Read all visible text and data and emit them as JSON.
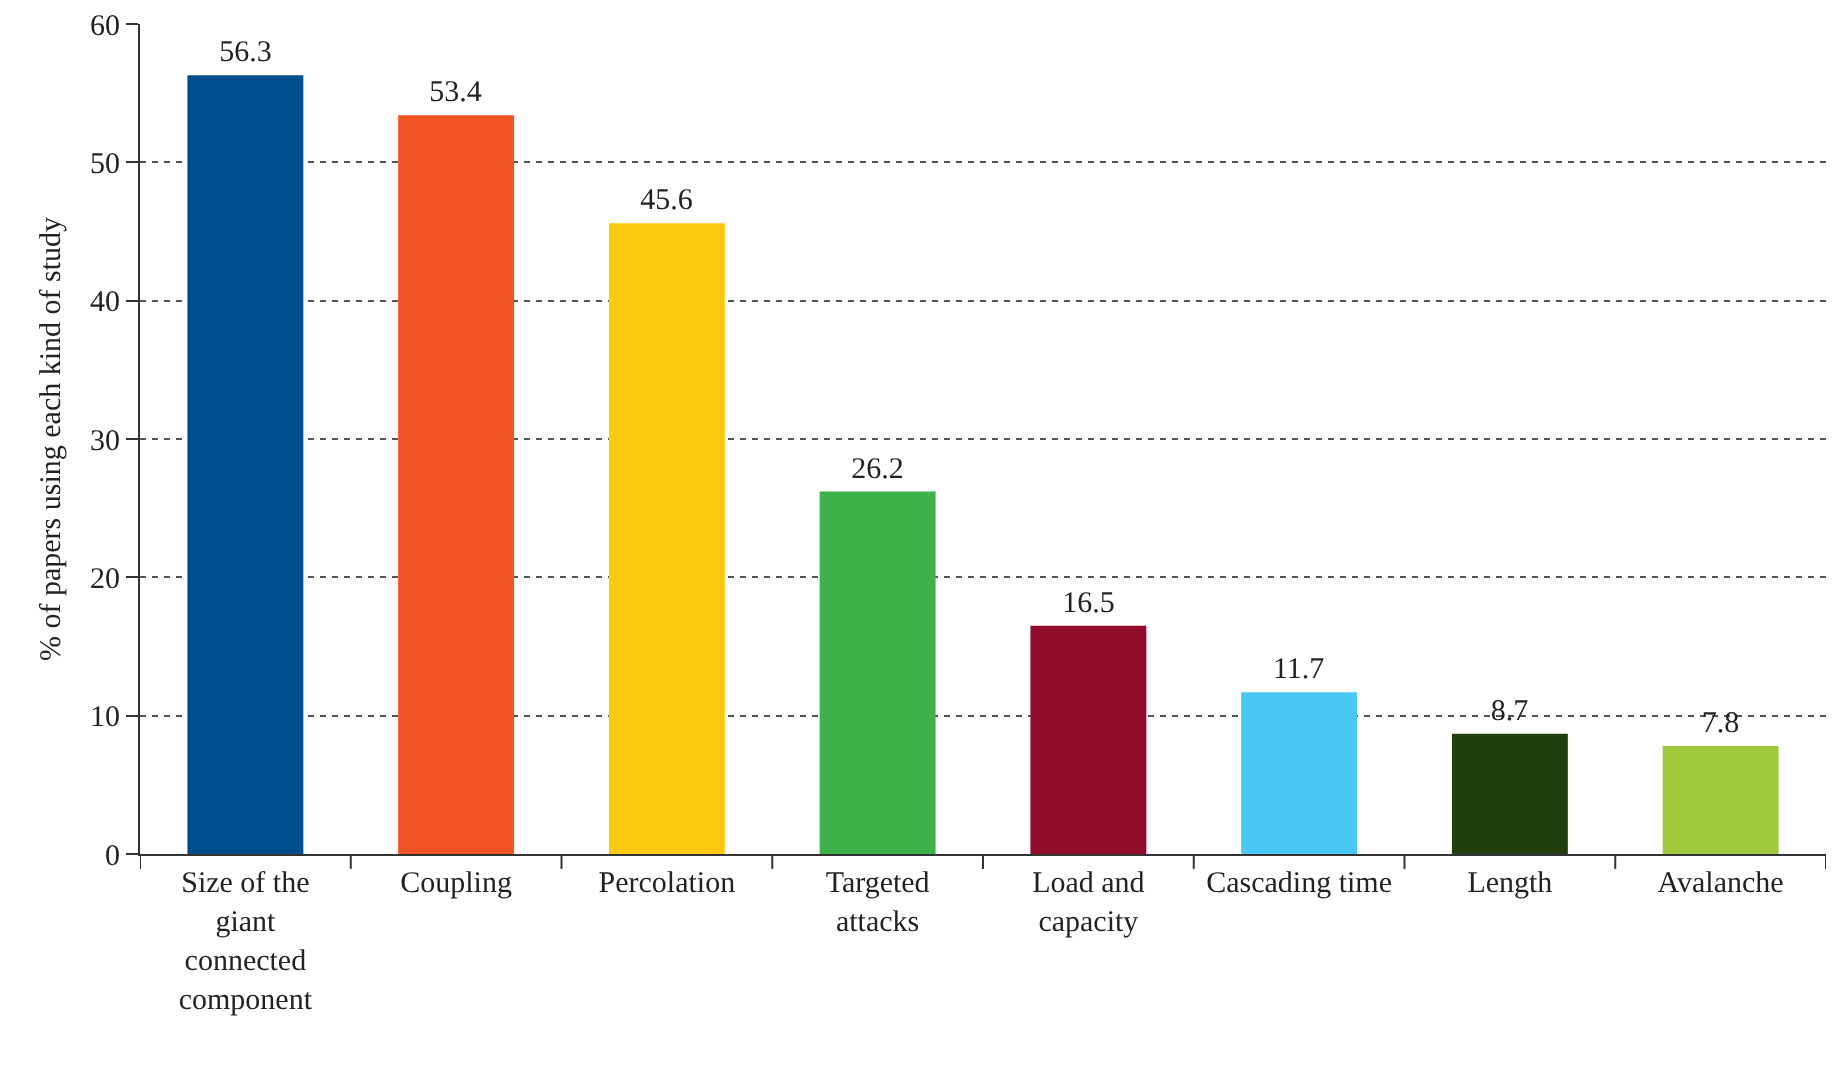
{
  "chart_data": {
    "type": "bar",
    "ylabel": "% of papers using each kind of study",
    "categories": [
      "Size of the giant connected component",
      "Coupling",
      "Percolation",
      "Targeted attacks",
      "Load and capacity",
      "Cascading time",
      "Length",
      "Avalanche"
    ],
    "values": [
      56.3,
      53.4,
      45.6,
      26.2,
      16.5,
      11.7,
      8.7,
      7.8
    ],
    "colors": [
      "#004e8b",
      "#f05425",
      "#fdc910",
      "#3fb14b",
      "#8f0a2b",
      "#48c8f2",
      "#213f0d",
      "#9dc93b"
    ],
    "ylim": [
      0,
      60
    ],
    "yticks": [
      0,
      10,
      20,
      30,
      40,
      50,
      60
    ],
    "grid": "y",
    "data_labels": true
  }
}
